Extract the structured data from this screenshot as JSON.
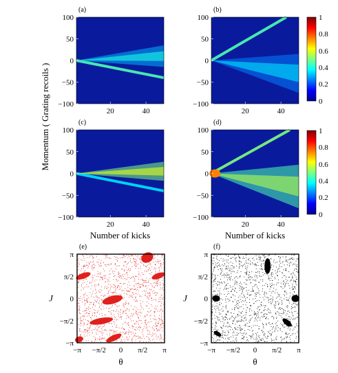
{
  "chart_data": [
    {
      "panel": "(a)",
      "type": "heatmap",
      "ylim": [
        -100,
        100
      ],
      "yticks": [
        100,
        50,
        0,
        -50,
        -100
      ],
      "xlim": [
        1,
        50
      ],
      "xticks": [
        20,
        40
      ],
      "branches": [
        {
          "x": [
            1,
            50
          ],
          "y": [
            0,
            -40
          ],
          "intensity": 0.45
        },
        {
          "x": [
            1,
            50
          ],
          "y": [
            0,
            10
          ],
          "intensity": 0.3,
          "spread": 25
        }
      ]
    },
    {
      "panel": "(b)",
      "type": "heatmap",
      "ylim": [
        -100,
        100
      ],
      "yticks": [
        100,
        50,
        0,
        -50,
        -100
      ],
      "xlim": [
        1,
        50
      ],
      "xticks": [
        20,
        40
      ],
      "branches": [
        {
          "x": [
            1,
            43
          ],
          "y": [
            0,
            100
          ],
          "intensity": 0.45
        },
        {
          "x": [
            1,
            50
          ],
          "y": [
            0,
            -30
          ],
          "intensity": 0.25,
          "spread": 45
        }
      ]
    },
    {
      "panel": "(c)",
      "type": "heatmap",
      "ylim": [
        -100,
        100
      ],
      "yticks": [
        100,
        50,
        0,
        -50,
        -100
      ],
      "xlim": [
        1,
        50
      ],
      "xticks": [
        20,
        40
      ],
      "xlabel": "Number of kicks",
      "branches": [
        {
          "x": [
            1,
            50
          ],
          "y": [
            0,
            -40
          ],
          "intensity": 0.35
        },
        {
          "x": [
            1,
            50
          ],
          "y": [
            0,
            5
          ],
          "intensity": 0.5,
          "spread": 22
        }
      ]
    },
    {
      "panel": "(d)",
      "type": "heatmap",
      "ylim": [
        -100,
        100
      ],
      "yticks": [
        100,
        50,
        0,
        -50,
        -100
      ],
      "xlim": [
        1,
        50
      ],
      "xticks": [
        20,
        40
      ],
      "xlabel": "Number of kicks",
      "branches": [
        {
          "x": [
            1,
            45
          ],
          "y": [
            0,
            100
          ],
          "intensity": 0.5
        },
        {
          "x": [
            1,
            50
          ],
          "y": [
            0,
            -30
          ],
          "intensity": 0.45,
          "spread": 50
        }
      ],
      "hotspot": {
        "x": 3,
        "y": 0,
        "intensity": 0.75
      }
    },
    {
      "panel": "(e)",
      "type": "scatter",
      "xlim": [
        -3.1416,
        3.1416
      ],
      "ylim": [
        -3.1416,
        3.1416
      ],
      "xticks": [
        "−π",
        "−π/2",
        "0",
        "π/2",
        "π"
      ],
      "yticks": [
        "π",
        "π/2",
        "0",
        "−π/2",
        "−π"
      ],
      "xlabel": "θ",
      "ylabel": "J",
      "color": "#e0201c",
      "islands": [
        {
          "x": -2.7,
          "y": 1.6,
          "rx": 0.55,
          "ry": 0.2,
          "rot": 20
        },
        {
          "x": 2.7,
          "y": 1.6,
          "rx": 0.5,
          "ry": 0.2,
          "rot": 20
        },
        {
          "x": 1.9,
          "y": 2.9,
          "rx": 0.45,
          "ry": 0.35,
          "rot": 30
        },
        {
          "x": -0.6,
          "y": -0.1,
          "rx": 0.75,
          "ry": 0.28,
          "rot": 15
        },
        {
          "x": -1.4,
          "y": -1.6,
          "rx": 0.85,
          "ry": 0.22,
          "rot": 10
        },
        {
          "x": -0.5,
          "y": -2.8,
          "rx": 0.6,
          "ry": 0.2,
          "rot": 25
        },
        {
          "x": -3.0,
          "y": -2.9,
          "rx": 0.3,
          "ry": 0.2,
          "rot": 20
        }
      ]
    },
    {
      "panel": "(f)",
      "type": "scatter",
      "xlim": [
        -3.1416,
        3.1416
      ],
      "ylim": [
        -3.1416,
        3.1416
      ],
      "xticks": [
        "−π",
        "−π/2",
        "0",
        "π/2",
        "π"
      ],
      "yticks": [
        "π",
        "π/2",
        "0",
        "−π/2",
        "−π"
      ],
      "xlabel": "θ",
      "ylabel": "J",
      "color": "#000000",
      "islands": [
        {
          "x": 0.9,
          "y": 2.3,
          "rx": 0.22,
          "ry": 0.55,
          "rot": 0
        },
        {
          "x": -2.8,
          "y": 0.0,
          "rx": 0.28,
          "ry": 0.22,
          "rot": 0
        },
        {
          "x": 2.9,
          "y": 0.0,
          "rx": 0.28,
          "ry": 0.25,
          "rot": 0
        },
        {
          "x": 2.3,
          "y": -1.7,
          "rx": 0.4,
          "ry": 0.18,
          "rot": -40
        },
        {
          "x": -2.7,
          "y": -2.5,
          "rx": 0.3,
          "ry": 0.15,
          "rot": -30
        }
      ]
    }
  ],
  "shared": {
    "ylabel": "Momentum ( Grating recoils )",
    "colorbar": {
      "ticks": [
        "1",
        "0.8",
        "0.6",
        "0.4",
        "0.2",
        "0"
      ],
      "range": [
        0,
        1
      ],
      "colormap": "jet"
    }
  }
}
